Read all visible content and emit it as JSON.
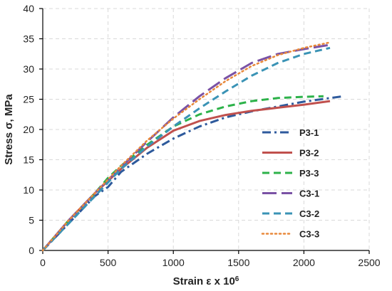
{
  "chart_data": {
    "type": "line",
    "title": "",
    "xlabel": "Strain ε x 10",
    "xlabel_sup": "6",
    "ylabel": "Stress σ, MPa",
    "xlim": [
      0,
      2500
    ],
    "ylim": [
      0,
      40
    ],
    "xticks": [
      "0",
      "500",
      "1000",
      "1500",
      "2000",
      "2500"
    ],
    "yticks": [
      "0",
      "5",
      "10",
      "15",
      "20",
      "25",
      "30",
      "35",
      "40"
    ],
    "grid": true,
    "legend_position": "right",
    "series": [
      {
        "name": "P3-1",
        "color": "#2E5A9C",
        "dash": "dashdot",
        "points": [
          [
            0,
            0
          ],
          [
            200,
            4.5
          ],
          [
            400,
            9
          ],
          [
            500,
            10.5
          ],
          [
            600,
            13
          ],
          [
            800,
            16
          ],
          [
            1000,
            18.5
          ],
          [
            1200,
            20.5
          ],
          [
            1400,
            22
          ],
          [
            1600,
            23
          ],
          [
            1800,
            23.8
          ],
          [
            2000,
            24.6
          ],
          [
            2200,
            25.2
          ],
          [
            2300,
            25.5
          ]
        ]
      },
      {
        "name": "P3-2",
        "color": "#C0504D",
        "dash": "solid",
        "points": [
          [
            0,
            0
          ],
          [
            200,
            5
          ],
          [
            400,
            9.5
          ],
          [
            600,
            13.5
          ],
          [
            800,
            17
          ],
          [
            1000,
            19.8
          ],
          [
            1200,
            21.4
          ],
          [
            1400,
            22.4
          ],
          [
            1600,
            23.1
          ],
          [
            1800,
            23.6
          ],
          [
            2000,
            24.1
          ],
          [
            2200,
            24.7
          ]
        ]
      },
      {
        "name": "P3-3",
        "color": "#2DB24A",
        "dash": "dash",
        "points": [
          [
            0,
            0
          ],
          [
            200,
            5
          ],
          [
            400,
            9.5
          ],
          [
            500,
            12
          ],
          [
            600,
            14
          ],
          [
            800,
            17.5
          ],
          [
            1000,
            20.5
          ],
          [
            1200,
            22.5
          ],
          [
            1400,
            23.8
          ],
          [
            1600,
            24.7
          ],
          [
            1800,
            25.2
          ],
          [
            2000,
            25.4
          ],
          [
            2150,
            25.5
          ]
        ]
      },
      {
        "name": "C3-1",
        "color": "#7A52A5",
        "dash": "longdash",
        "points": [
          [
            0,
            0
          ],
          [
            200,
            5
          ],
          [
            400,
            9.5
          ],
          [
            600,
            13.8
          ],
          [
            800,
            18
          ],
          [
            1000,
            22
          ],
          [
            1200,
            25.5
          ],
          [
            1400,
            28.5
          ],
          [
            1600,
            31
          ],
          [
            1800,
            32.5
          ],
          [
            2000,
            33.3
          ],
          [
            2200,
            34
          ]
        ]
      },
      {
        "name": "C3-2",
        "color": "#3A93B5",
        "dash": "dash",
        "points": [
          [
            0,
            0
          ],
          [
            200,
            4.5
          ],
          [
            400,
            9
          ],
          [
            600,
            13.5
          ],
          [
            800,
            17.2
          ],
          [
            1000,
            20.5
          ],
          [
            1200,
            23.5
          ],
          [
            1400,
            26.3
          ],
          [
            1600,
            28.9
          ],
          [
            1800,
            31
          ],
          [
            2000,
            32.5
          ],
          [
            2200,
            33.5
          ]
        ]
      },
      {
        "name": "C3-3",
        "color": "#E8883A",
        "dash": "dot",
        "points": [
          [
            0,
            0
          ],
          [
            200,
            5
          ],
          [
            400,
            9.5
          ],
          [
            600,
            14
          ],
          [
            800,
            18.2
          ],
          [
            1000,
            21.8
          ],
          [
            1200,
            25
          ],
          [
            1400,
            28
          ],
          [
            1600,
            30.5
          ],
          [
            1800,
            32.3
          ],
          [
            2000,
            33.5
          ],
          [
            2200,
            34.4
          ]
        ]
      }
    ]
  }
}
